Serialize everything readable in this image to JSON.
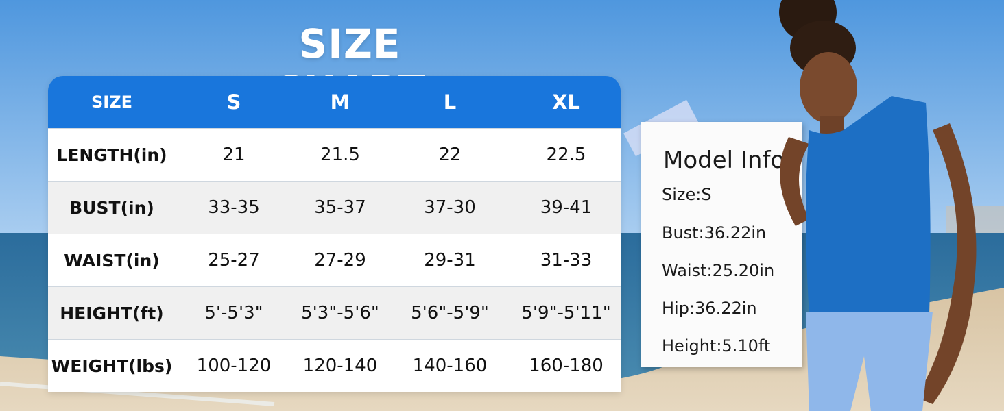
{
  "title": "SIZE CHART",
  "table": {
    "header": [
      "SIZE",
      "S",
      "M",
      "L",
      "XL"
    ],
    "rows": [
      [
        "LENGTH(in)",
        "21",
        "21.5",
        "22",
        "22.5"
      ],
      [
        "BUST(in)",
        "33-35",
        "35-37",
        "37-30",
        "39-41"
      ],
      [
        "WAIST(in)",
        "25-27",
        "27-29",
        "29-31",
        "31-33"
      ],
      [
        "HEIGHT(ft)",
        "5'-5'3\"",
        "5'3\"-5'6\"",
        "5'6\"-5'9\"",
        "5'9\"-5'11\""
      ],
      [
        "WEIGHT(lbs)",
        "100-120",
        "120-140",
        "140-160",
        "160-180"
      ]
    ]
  },
  "model_info": {
    "title": "Model Info",
    "size": "Size:S",
    "bust": "Bust:36.22in",
    "waist": "Waist:25.20in",
    "hip": "Hip:36.22in",
    "height": "Height:5.10ft"
  },
  "colors": {
    "header_blue": "#1976dc",
    "sky": "#5b9fe0",
    "sea": "#1f5a86",
    "sand": "#d9c6a8",
    "top_blue": "#1d6fc4",
    "leggings": "#8fb7ea"
  },
  "background_icon": "beach-photo"
}
